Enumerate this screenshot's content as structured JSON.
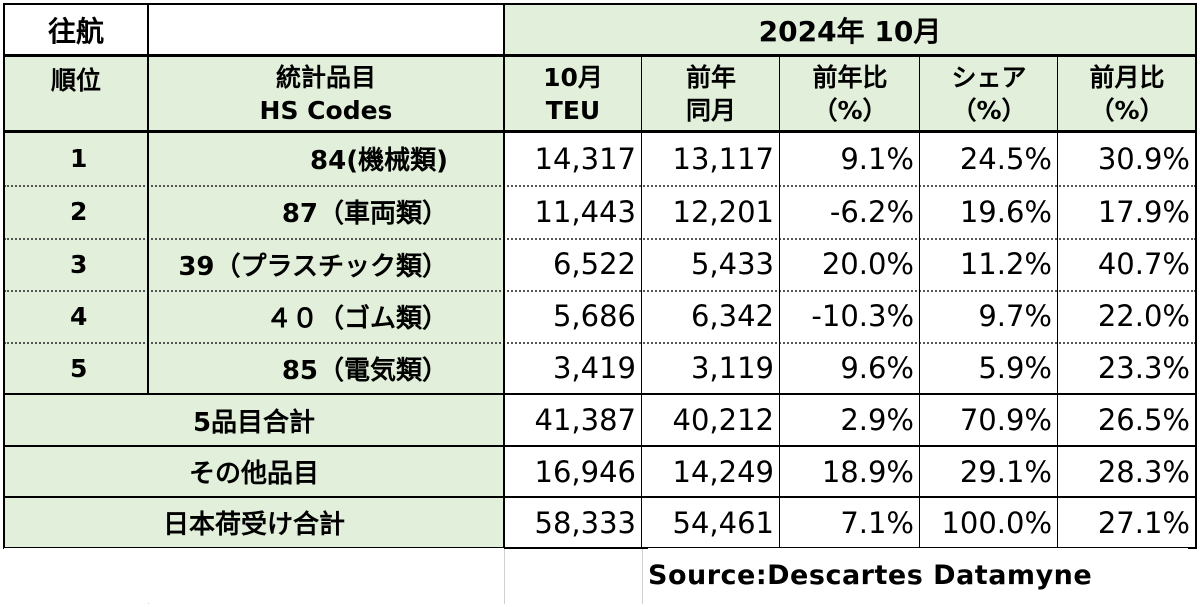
{
  "corner_label": "往航",
  "period": "2024年 10月",
  "headers": {
    "rank": "順位",
    "item_line1": "統計品目",
    "item_line2": "HS Codes",
    "teu_line1": "10月",
    "teu_line2": "TEU",
    "prev_line1": "前年",
    "prev_line2": "同月",
    "yoy_line1": "前年比",
    "yoy_line2": "（%）",
    "share_line1": "シェア",
    "share_line2": "（%）",
    "mom_line1": "前月比",
    "mom_line2": "（%）"
  },
  "rows": [
    {
      "rank": "1",
      "item": "84(機械類)",
      "teu": "14,317",
      "prev": "13,117",
      "yoy": "9.1%",
      "share": "24.5%",
      "mom": "30.9%"
    },
    {
      "rank": "2",
      "item": "87（車両類）",
      "teu": "11,443",
      "prev": "12,201",
      "yoy": "-6.2%",
      "share": "19.6%",
      "mom": "17.9%"
    },
    {
      "rank": "3",
      "item": "39（プラスチック類）",
      "teu": "6,522",
      "prev": "5,433",
      "yoy": "20.0%",
      "share": "11.2%",
      "mom": "40.7%"
    },
    {
      "rank": "4",
      "item": "４０（ゴム類）",
      "teu": "5,686",
      "prev": "6,342",
      "yoy": "-10.3%",
      "share": "9.7%",
      "mom": "22.0%"
    },
    {
      "rank": "5",
      "item": "85（電気類）",
      "teu": "3,419",
      "prev": "3,119",
      "yoy": "9.6%",
      "share": "5.9%",
      "mom": "23.3%"
    }
  ],
  "totals": [
    {
      "label": "5品目合計",
      "teu": "41,387",
      "prev": "40,212",
      "yoy": "2.9%",
      "share": "70.9%",
      "mom": "26.5%"
    },
    {
      "label": "その他品目",
      "teu": "16,946",
      "prev": "14,249",
      "yoy": "18.9%",
      "share": "29.1%",
      "mom": "28.3%"
    },
    {
      "label": "日本荷受け合計",
      "teu": "58,333",
      "prev": "54,461",
      "yoy": "7.1%",
      "share": "100.0%",
      "mom": "27.1%"
    }
  ],
  "source": "Source:Descartes  Datamyne"
}
